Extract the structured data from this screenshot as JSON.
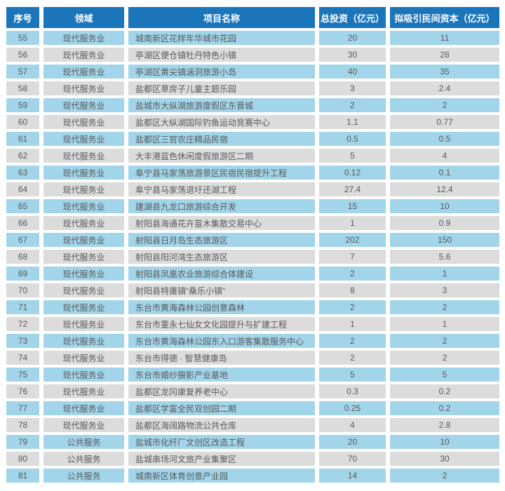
{
  "colors": {
    "header_bg": "#1b75bb",
    "row_blue": "#a2d5e9",
    "row_gray": "#dcdcdc",
    "header_text": "#ffffff",
    "body_text": "#58595b",
    "page_bg": "#ffffff"
  },
  "table": {
    "columns": [
      "序号",
      "领域",
      "项目名称",
      "总投资（亿元）",
      "拟吸引民间资本（亿元）"
    ],
    "rows": [
      {
        "no": "55",
        "field": "现代服务业",
        "project": "城南新区花样年华城市花园",
        "investment": "20",
        "private_capital": "11"
      },
      {
        "no": "56",
        "field": "现代服务业",
        "project": "亭湖区便仓镇牡丹特色小镇",
        "investment": "30",
        "private_capital": "28"
      },
      {
        "no": "57",
        "field": "现代服务业",
        "project": "亭湖区黄尖镇涵洞旅游小岛",
        "investment": "40",
        "private_capital": "35"
      },
      {
        "no": "58",
        "field": "现代服务业",
        "project": "盐都区草房子儿童主题乐园",
        "investment": "3",
        "private_capital": "2.4"
      },
      {
        "no": "59",
        "field": "现代服务业",
        "project": "盐城市大纵湖旅游度假区东晋城",
        "investment": "2",
        "private_capital": "2"
      },
      {
        "no": "60",
        "field": "现代服务业",
        "project": "盐都区大纵湖国际钓鱼运动竞赛中心",
        "investment": "1.1",
        "private_capital": "0.77"
      },
      {
        "no": "61",
        "field": "现代服务业",
        "project": "盐都区三官农庄精品民宿",
        "investment": "0.5",
        "private_capital": "0.5"
      },
      {
        "no": "62",
        "field": "现代服务业",
        "project": "大丰港蓝色休闲度假旅游区二期",
        "investment": "5",
        "private_capital": "4"
      },
      {
        "no": "63",
        "field": "现代服务业",
        "project": "阜宁县马家荡旅游景区民宿民宿提升工程",
        "investment": "0.12",
        "private_capital": "0.1"
      },
      {
        "no": "64",
        "field": "现代服务业",
        "project": "阜宁县马家荡退圩还湖工程",
        "investment": "27.4",
        "private_capital": "12.4"
      },
      {
        "no": "65",
        "field": "现代服务业",
        "project": "建湖县九龙口旅游综合开发",
        "investment": "15",
        "private_capital": "10"
      },
      {
        "no": "66",
        "field": "现代服务业",
        "project": "射阳县海通花卉苗木集散交易中心",
        "investment": "1",
        "private_capital": "0.9"
      },
      {
        "no": "67",
        "field": "现代服务业",
        "project": "射阳县日月岛生态旅游区",
        "investment": "202",
        "private_capital": "150"
      },
      {
        "no": "68",
        "field": "现代服务业",
        "project": "射阳县阳河湾生态旅游区",
        "investment": "7",
        "private_capital": "5.6"
      },
      {
        "no": "69",
        "field": "现代服务业",
        "project": "射阳县凤凰农业旅游综合体建设",
        "investment": "2",
        "private_capital": "1"
      },
      {
        "no": "70",
        "field": "现代服务业",
        "project": "射阳县特庸镇“桑乐小镇”",
        "investment": "8",
        "private_capital": "3"
      },
      {
        "no": "71",
        "field": "现代服务业",
        "project": "东台市黄海森林公园创意森林",
        "investment": "2",
        "private_capital": "2"
      },
      {
        "no": "72",
        "field": "现代服务业",
        "project": "东台市董永七仙女文化园提升与扩建工程",
        "investment": "1",
        "private_capital": "1"
      },
      {
        "no": "73",
        "field": "现代服务业",
        "project": "东台市黄海森林公园东入口游客集散服务中心",
        "investment": "2",
        "private_capital": "2"
      },
      {
        "no": "74",
        "field": "现代服务业",
        "project": "东台市得德 · 智慧健康岛",
        "investment": "2",
        "private_capital": "2"
      },
      {
        "no": "75",
        "field": "现代服务业",
        "project": "东台市婚纱摄影产业基地",
        "investment": "5",
        "private_capital": "5"
      },
      {
        "no": "76",
        "field": "现代服务业",
        "project": "盐都区龙冈康复养老中心",
        "investment": "0.3",
        "private_capital": "0.2"
      },
      {
        "no": "77",
        "field": "现代服务业",
        "project": "盐都区学富全民双创园二期",
        "investment": "0.25",
        "private_capital": "0.2"
      },
      {
        "no": "78",
        "field": "现代服务业",
        "project": "盐都区海阔路物流公共仓库",
        "investment": "4",
        "private_capital": "2.8"
      },
      {
        "no": "79",
        "field": "公共服务",
        "project": "盐城市化纤厂文创区改造工程",
        "investment": "20",
        "private_capital": "10"
      },
      {
        "no": "80",
        "field": "公共服务",
        "project": "盐城串场河文旅产业集聚区",
        "investment": "70",
        "private_capital": "30"
      },
      {
        "no": "81",
        "field": "公共服务",
        "project": "城南新区体育创意产业园",
        "investment": "14",
        "private_capital": "2"
      }
    ]
  }
}
